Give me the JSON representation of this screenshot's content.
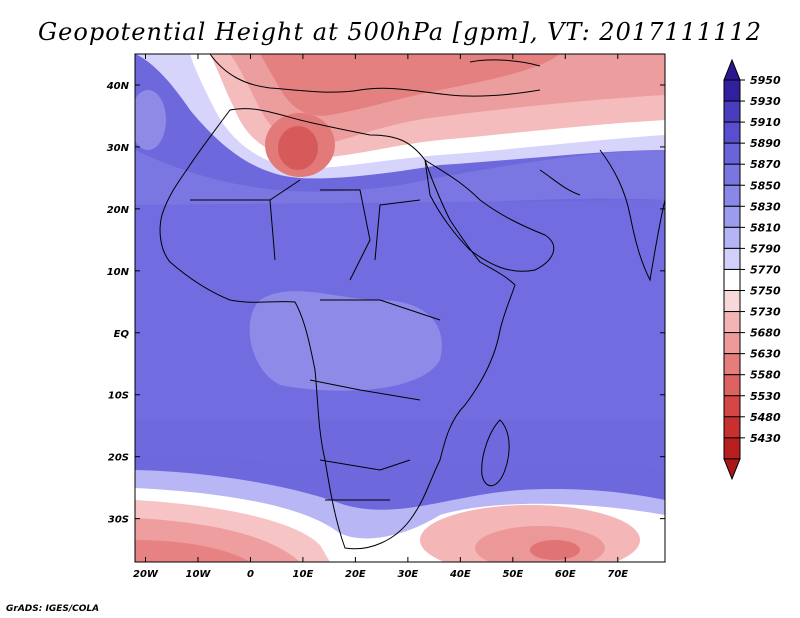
{
  "title": "Geopotential Height at 500hPa [gpm], VT: 2017111112",
  "credit": "GrADS: IGES/COLA",
  "map": {
    "extent": {
      "lon": [
        -22,
        79
      ],
      "lat": [
        -37,
        45
      ]
    },
    "lat_ticks": [
      {
        "value": 40,
        "label": "40N"
      },
      {
        "value": 30,
        "label": "30N"
      },
      {
        "value": 20,
        "label": "20N"
      },
      {
        "value": 10,
        "label": "10N"
      },
      {
        "value": 0,
        "label": "EQ"
      },
      {
        "value": -10,
        "label": "10S"
      },
      {
        "value": -20,
        "label": "20S"
      },
      {
        "value": -30,
        "label": "30S"
      }
    ],
    "lon_ticks": [
      {
        "value": -20,
        "label": "20W"
      },
      {
        "value": -10,
        "label": "10W"
      },
      {
        "value": 0,
        "label": "0"
      },
      {
        "value": 10,
        "label": "10E"
      },
      {
        "value": 20,
        "label": "20E"
      },
      {
        "value": 30,
        "label": "30E"
      },
      {
        "value": 40,
        "label": "40E"
      },
      {
        "value": 50,
        "label": "50E"
      },
      {
        "value": 60,
        "label": "60E"
      },
      {
        "value": 70,
        "label": "70E"
      }
    ]
  },
  "colorbar": {
    "levels": [
      "5950",
      "5930",
      "5910",
      "5890",
      "5870",
      "5850",
      "5830",
      "5810",
      "5790",
      "5770",
      "5750",
      "5730",
      "5680",
      "5630",
      "5580",
      "5530",
      "5480",
      "5430"
    ],
    "colors": [
      "#3020a0",
      "#4a3cbe",
      "#5a4ed0",
      "#6a64da",
      "#7a76e0",
      "#8a88e6",
      "#9c9cee",
      "#b4b4f6",
      "#d0d0fa",
      "#ffffff",
      "#f8d8d8",
      "#f4b4b4",
      "#ee9a9a",
      "#e67c7c",
      "#de6262",
      "#d64646",
      "#c83030",
      "#b82020"
    ],
    "top_arrow_color": "#2a1890",
    "bottom_arrow_color": "#a81818"
  }
}
